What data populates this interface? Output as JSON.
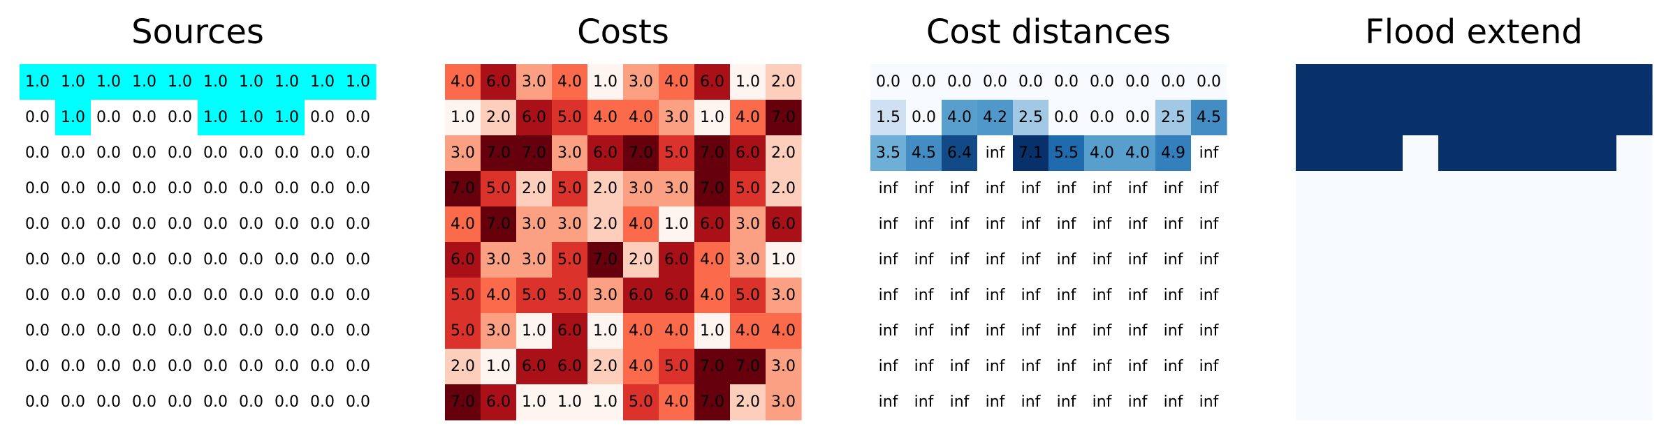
{
  "chart_data": [
    {
      "type": "heatmap",
      "title": "Sources",
      "colormap": [
        "#ffffff",
        "#00ffff"
      ],
      "vmin": 0.0,
      "vmax": 1.0,
      "values": [
        [
          1.0,
          1.0,
          1.0,
          1.0,
          1.0,
          1.0,
          1.0,
          1.0,
          1.0,
          1.0
        ],
        [
          0.0,
          1.0,
          0.0,
          0.0,
          0.0,
          1.0,
          1.0,
          1.0,
          0.0,
          0.0
        ],
        [
          0.0,
          0.0,
          0.0,
          0.0,
          0.0,
          0.0,
          0.0,
          0.0,
          0.0,
          0.0
        ],
        [
          0.0,
          0.0,
          0.0,
          0.0,
          0.0,
          0.0,
          0.0,
          0.0,
          0.0,
          0.0
        ],
        [
          0.0,
          0.0,
          0.0,
          0.0,
          0.0,
          0.0,
          0.0,
          0.0,
          0.0,
          0.0
        ],
        [
          0.0,
          0.0,
          0.0,
          0.0,
          0.0,
          0.0,
          0.0,
          0.0,
          0.0,
          0.0
        ],
        [
          0.0,
          0.0,
          0.0,
          0.0,
          0.0,
          0.0,
          0.0,
          0.0,
          0.0,
          0.0
        ],
        [
          0.0,
          0.0,
          0.0,
          0.0,
          0.0,
          0.0,
          0.0,
          0.0,
          0.0,
          0.0
        ],
        [
          0.0,
          0.0,
          0.0,
          0.0,
          0.0,
          0.0,
          0.0,
          0.0,
          0.0,
          0.0
        ],
        [
          0.0,
          0.0,
          0.0,
          0.0,
          0.0,
          0.0,
          0.0,
          0.0,
          0.0,
          0.0
        ]
      ],
      "show_values": true,
      "grid": false
    },
    {
      "type": "heatmap",
      "title": "Costs",
      "colormap": [
        "#fff5f0",
        "#fcbba1",
        "#fb6a4a",
        "#cb181d",
        "#67000d"
      ],
      "vmin": 1.0,
      "vmax": 7.0,
      "values": [
        [
          4.0,
          6.0,
          3.0,
          4.0,
          1.0,
          3.0,
          4.0,
          6.0,
          1.0,
          2.0
        ],
        [
          1.0,
          2.0,
          6.0,
          5.0,
          4.0,
          4.0,
          3.0,
          1.0,
          4.0,
          7.0
        ],
        [
          3.0,
          7.0,
          7.0,
          3.0,
          6.0,
          7.0,
          5.0,
          7.0,
          6.0,
          2.0
        ],
        [
          7.0,
          5.0,
          2.0,
          5.0,
          2.0,
          3.0,
          3.0,
          7.0,
          5.0,
          2.0
        ],
        [
          4.0,
          7.0,
          3.0,
          3.0,
          2.0,
          4.0,
          1.0,
          6.0,
          3.0,
          6.0
        ],
        [
          6.0,
          3.0,
          3.0,
          5.0,
          7.0,
          2.0,
          6.0,
          4.0,
          3.0,
          1.0
        ],
        [
          5.0,
          4.0,
          5.0,
          5.0,
          3.0,
          6.0,
          6.0,
          4.0,
          5.0,
          3.0
        ],
        [
          5.0,
          3.0,
          1.0,
          6.0,
          1.0,
          4.0,
          4.0,
          1.0,
          4.0,
          4.0
        ],
        [
          2.0,
          1.0,
          6.0,
          6.0,
          2.0,
          4.0,
          5.0,
          7.0,
          7.0,
          3.0
        ],
        [
          7.0,
          6.0,
          1.0,
          1.0,
          1.0,
          5.0,
          4.0,
          7.0,
          2.0,
          3.0
        ]
      ],
      "show_values": true,
      "grid": false
    },
    {
      "type": "heatmap",
      "title": "Cost distances",
      "colormap": [
        "#f7fbff",
        "#c6dbef",
        "#6baed6",
        "#2171b5",
        "#08306b"
      ],
      "vmin": 0.0,
      "vmax": 7.1,
      "infinite_color": "#ffffff",
      "values": [
        [
          "0.0",
          "0.0",
          "0.0",
          "0.0",
          "0.0",
          "0.0",
          "0.0",
          "0.0",
          "0.0",
          "0.0"
        ],
        [
          "1.5",
          "0.0",
          "4.0",
          "4.2",
          "2.5",
          "0.0",
          "0.0",
          "0.0",
          "2.5",
          "4.5"
        ],
        [
          "3.5",
          "4.5",
          "6.4",
          "inf",
          "7.1",
          "5.5",
          "4.0",
          "4.0",
          "4.9",
          "inf"
        ],
        [
          "inf",
          "inf",
          "inf",
          "inf",
          "inf",
          "inf",
          "inf",
          "inf",
          "inf",
          "inf"
        ],
        [
          "inf",
          "inf",
          "inf",
          "inf",
          "inf",
          "inf",
          "inf",
          "inf",
          "inf",
          "inf"
        ],
        [
          "inf",
          "inf",
          "inf",
          "inf",
          "inf",
          "inf",
          "inf",
          "inf",
          "inf",
          "inf"
        ],
        [
          "inf",
          "inf",
          "inf",
          "inf",
          "inf",
          "inf",
          "inf",
          "inf",
          "inf",
          "inf"
        ],
        [
          "inf",
          "inf",
          "inf",
          "inf",
          "inf",
          "inf",
          "inf",
          "inf",
          "inf",
          "inf"
        ],
        [
          "inf",
          "inf",
          "inf",
          "inf",
          "inf",
          "inf",
          "inf",
          "inf",
          "inf",
          "inf"
        ],
        [
          "inf",
          "inf",
          "inf",
          "inf",
          "inf",
          "inf",
          "inf",
          "inf",
          "inf",
          "inf"
        ]
      ],
      "show_values": true,
      "grid": false
    },
    {
      "type": "heatmap",
      "title": "Flood extend",
      "colormap": [
        "#f7fbff",
        "#08306b"
      ],
      "vmin": 0,
      "vmax": 1,
      "values": [
        [
          1,
          1,
          1,
          1,
          1,
          1,
          1,
          1,
          1,
          1
        ],
        [
          1,
          1,
          1,
          1,
          1,
          1,
          1,
          1,
          1,
          1
        ],
        [
          1,
          1,
          1,
          0,
          1,
          1,
          1,
          1,
          1,
          0
        ],
        [
          0,
          0,
          0,
          0,
          0,
          0,
          0,
          0,
          0,
          0
        ],
        [
          0,
          0,
          0,
          0,
          0,
          0,
          0,
          0,
          0,
          0
        ],
        [
          0,
          0,
          0,
          0,
          0,
          0,
          0,
          0,
          0,
          0
        ],
        [
          0,
          0,
          0,
          0,
          0,
          0,
          0,
          0,
          0,
          0
        ],
        [
          0,
          0,
          0,
          0,
          0,
          0,
          0,
          0,
          0,
          0
        ],
        [
          0,
          0,
          0,
          0,
          0,
          0,
          0,
          0,
          0,
          0
        ],
        [
          0,
          0,
          0,
          0,
          0,
          0,
          0,
          0,
          0,
          0
        ]
      ],
      "show_values": false,
      "grid": false
    }
  ]
}
